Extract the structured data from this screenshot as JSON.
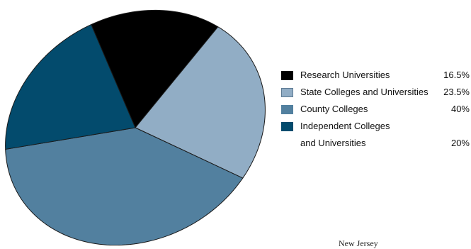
{
  "chart_data": {
    "type": "pie",
    "title": "",
    "slices": [
      {
        "label_lines": [
          "Research Universities"
        ],
        "value": 16.5,
        "value_label": "16.5%",
        "color": "#000000"
      },
      {
        "label_lines": [
          "State Colleges and Universities"
        ],
        "value": 23.5,
        "value_label": "23.5%",
        "color": "#91adc5"
      },
      {
        "label_lines": [
          "County Colleges"
        ],
        "value": 40,
        "value_label": "40%",
        "color": "#52809f"
      },
      {
        "label_lines": [
          "Independent Colleges",
          "and Universities"
        ],
        "value": 20,
        "value_label": "20%",
        "color": "#034b6d"
      }
    ],
    "legend_position": "right"
  },
  "footer": {
    "text": "New Jersey"
  }
}
